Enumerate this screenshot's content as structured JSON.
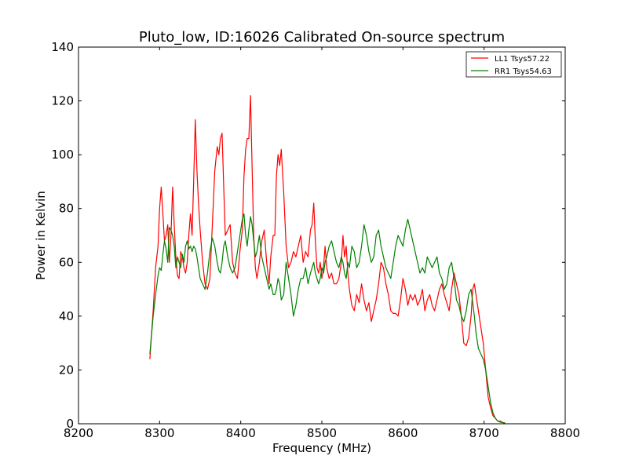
{
  "chart_data": {
    "type": "line",
    "title": "Pluto_low, ID:16026 Calibrated On-source spectrum",
    "xlabel": "Frequency (MHz)",
    "ylabel": "Power in Kelvin",
    "xlim": [
      8200,
      8800
    ],
    "ylim": [
      0,
      140
    ],
    "xticks": [
      "8200",
      "8300",
      "8400",
      "8500",
      "8600",
      "8700",
      "8800"
    ],
    "yticks": [
      "0",
      "20",
      "40",
      "60",
      "80",
      "100",
      "120",
      "140"
    ],
    "grid": false,
    "legend_position": "top-right",
    "series": [
      {
        "name": "LL1 Tsys57.22",
        "color": "#ff0000",
        "x": [
          8288,
          8292,
          8295,
          8298,
          8300,
          8302,
          8304,
          8306,
          8308,
          8310,
          8312,
          8314,
          8316,
          8318,
          8320,
          8322,
          8324,
          8326,
          8328,
          8330,
          8332,
          8334,
          8336,
          8338,
          8340,
          8342,
          8344,
          8346,
          8348,
          8350,
          8353,
          8356,
          8359,
          8362,
          8365,
          8368,
          8371,
          8373,
          8375,
          8377,
          8379,
          8381,
          8384,
          8387,
          8390,
          8393,
          8396,
          8399,
          8402,
          8404,
          8406,
          8408,
          8410,
          8412,
          8414,
          8416,
          8418,
          8420,
          8423,
          8426,
          8429,
          8432,
          8435,
          8437,
          8440,
          8442,
          8444,
          8446,
          8448,
          8450,
          8453,
          8456,
          8459,
          8462,
          8465,
          8468,
          8471,
          8474,
          8477,
          8480,
          8483,
          8486,
          8488,
          8490,
          8492,
          8494,
          8496,
          8498,
          8500,
          8502,
          8504,
          8506,
          8509,
          8512,
          8515,
          8518,
          8521,
          8524,
          8526,
          8528,
          8530,
          8532,
          8534,
          8537,
          8540,
          8543,
          8546,
          8549,
          8552,
          8555,
          8558,
          8561,
          8564,
          8567,
          8570,
          8573,
          8576,
          8579,
          8582,
          8585,
          8588,
          8591,
          8594,
          8597,
          8600,
          8603,
          8606,
          8609,
          8612,
          8615,
          8618,
          8621,
          8624,
          8627,
          8630,
          8633,
          8636,
          8639,
          8642,
          8645,
          8648,
          8651,
          8654,
          8657,
          8660,
          8663,
          8666,
          8669,
          8672,
          8675,
          8678,
          8681,
          8684,
          8686,
          8688,
          8690,
          8693,
          8696,
          8699,
          8702,
          8705,
          8708,
          8711,
          8714,
          8717,
          8720,
          8723,
          8726
        ],
        "y": [
          24,
          42,
          58,
          66,
          80,
          88,
          78,
          68,
          70,
          74,
          60,
          70,
          88,
          74,
          62,
          55,
          54,
          64,
          62,
          58,
          56,
          60,
          70,
          78,
          70,
          90,
          113,
          94,
          82,
          72,
          60,
          52,
          50,
          54,
          74,
          94,
          103,
          100,
          106,
          108,
          88,
          70,
          72,
          74,
          60,
          56,
          54,
          64,
          72,
          92,
          102,
          106,
          106,
          122,
          96,
          70,
          58,
          54,
          60,
          68,
          72,
          60,
          52,
          62,
          70,
          70,
          92,
          100,
          96,
          102,
          86,
          66,
          58,
          60,
          64,
          62,
          66,
          70,
          60,
          64,
          62,
          72,
          74,
          82,
          68,
          58,
          56,
          60,
          54,
          58,
          66,
          58,
          54,
          56,
          52,
          52,
          54,
          60,
          70,
          62,
          66,
          56,
          50,
          44,
          42,
          48,
          45,
          52,
          46,
          42,
          45,
          38,
          42,
          46,
          52,
          60,
          58,
          52,
          48,
          42,
          41,
          41,
          40,
          46,
          54,
          50,
          44,
          48,
          46,
          48,
          44,
          46,
          50,
          42,
          46,
          48,
          44,
          42,
          46,
          50,
          52,
          48,
          45,
          42,
          50,
          56,
          52,
          48,
          40,
          30,
          29,
          32,
          40,
          50,
          52,
          48,
          42,
          36,
          30,
          20,
          10,
          6,
          3,
          2,
          1,
          1,
          0.5,
          0.3
        ],
        "gaps_note": ""
      },
      {
        "name": "RR1 Tsys54.63",
        "color": "#008000",
        "x": [
          8288,
          8292,
          8295,
          8298,
          8300,
          8302,
          8304,
          8306,
          8308,
          8310,
          8312,
          8314,
          8316,
          8318,
          8320,
          8322,
          8324,
          8326,
          8328,
          8330,
          8332,
          8334,
          8336,
          8338,
          8340,
          8342,
          8344,
          8346,
          8348,
          8350,
          8353,
          8356,
          8359,
          8362,
          8365,
          8368,
          8371,
          8373,
          8375,
          8377,
          8379,
          8381,
          8384,
          8387,
          8390,
          8393,
          8396,
          8399,
          8402,
          8404,
          8406,
          8408,
          8410,
          8412,
          8414,
          8416,
          8418,
          8420,
          8423,
          8426,
          8429,
          8432,
          8435,
          8437,
          8440,
          8442,
          8444,
          8446,
          8448,
          8450,
          8453,
          8456,
          8459,
          8462,
          8465,
          8468,
          8471,
          8474,
          8477,
          8480,
          8483,
          8486,
          8488,
          8490,
          8492,
          8494,
          8496,
          8498,
          8500,
          8502,
          8504,
          8506,
          8509,
          8512,
          8515,
          8518,
          8521,
          8524,
          8526,
          8528,
          8530,
          8532,
          8534,
          8537,
          8540,
          8543,
          8546,
          8549,
          8552,
          8555,
          8558,
          8561,
          8564,
          8567,
          8570,
          8573,
          8576,
          8579,
          8582,
          8585,
          8588,
          8591,
          8594,
          8597,
          8600,
          8603,
          8606,
          8609,
          8612,
          8615,
          8618,
          8621,
          8624,
          8627,
          8630,
          8633,
          8636,
          8639,
          8642,
          8645,
          8648,
          8651,
          8654,
          8657,
          8660,
          8663,
          8666,
          8669,
          8672,
          8675,
          8678,
          8681,
          8684,
          8686,
          8688,
          8690,
          8693,
          8696,
          8699,
          8702,
          8705,
          8708,
          8711,
          8714,
          8717,
          8720,
          8723,
          8726
        ],
        "y": [
          26,
          40,
          48,
          55,
          58,
          57,
          63,
          68,
          65,
          60,
          73,
          72,
          70,
          66,
          58,
          62,
          60,
          58,
          63,
          60,
          66,
          68,
          65,
          66,
          64,
          66,
          65,
          62,
          58,
          54,
          52,
          50,
          56,
          64,
          69,
          66,
          60,
          57,
          56,
          60,
          66,
          68,
          62,
          58,
          56,
          58,
          64,
          70,
          76,
          78,
          70,
          66,
          72,
          77,
          74,
          68,
          62,
          64,
          70,
          62,
          58,
          54,
          50,
          52,
          48,
          48,
          50,
          54,
          52,
          46,
          48,
          60,
          54,
          48,
          40,
          44,
          50,
          54,
          54,
          58,
          52,
          56,
          58,
          60,
          56,
          54,
          52,
          54,
          58,
          56,
          60,
          62,
          66,
          68,
          64,
          60,
          58,
          62,
          60,
          56,
          54,
          60,
          58,
          66,
          64,
          58,
          60,
          66,
          74,
          70,
          64,
          60,
          62,
          70,
          72,
          66,
          62,
          58,
          56,
          54,
          60,
          66,
          70,
          68,
          66,
          72,
          76,
          72,
          68,
          64,
          60,
          56,
          58,
          56,
          62,
          60,
          58,
          60,
          62,
          56,
          54,
          50,
          52,
          58,
          60,
          54,
          46,
          44,
          40,
          38,
          42,
          48,
          50,
          45,
          40,
          34,
          28,
          26,
          24,
          20,
          14,
          8,
          4,
          2,
          1,
          0.6,
          0.4,
          0.2
        ],
        "gaps_note": ""
      }
    ]
  }
}
